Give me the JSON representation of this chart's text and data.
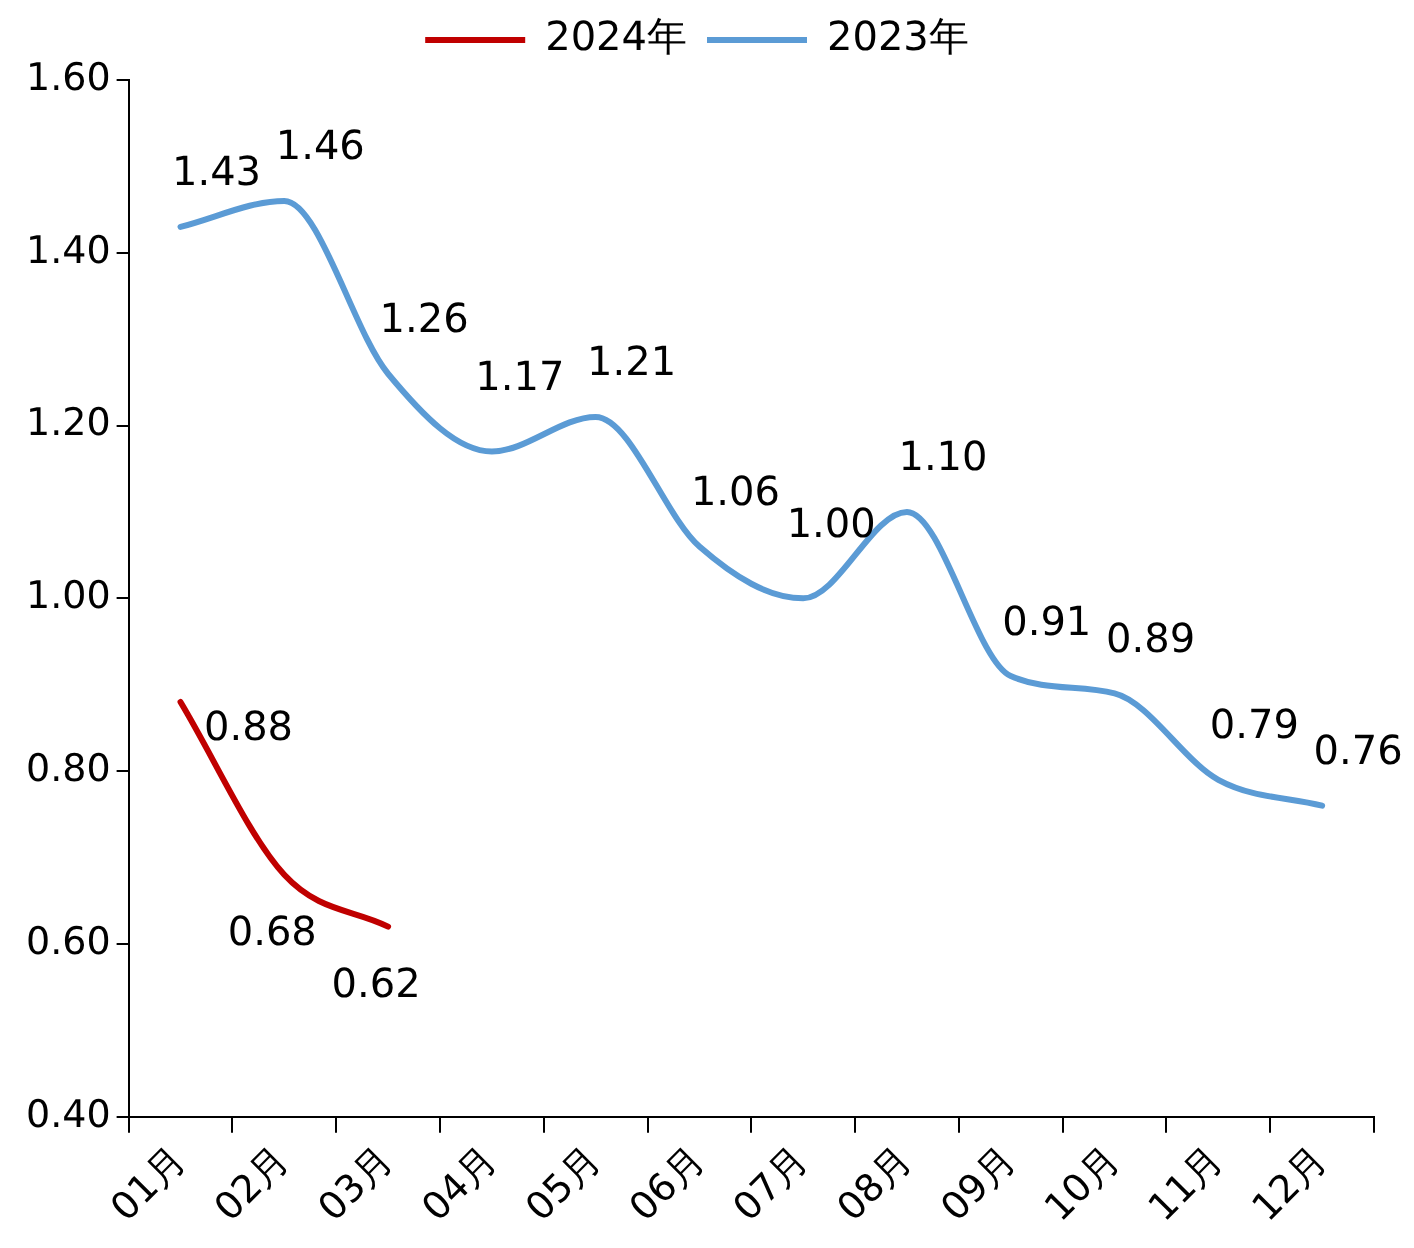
{
  "chart_data": {
    "type": "line",
    "categories": [
      "01月",
      "02月",
      "03月",
      "04月",
      "05月",
      "06月",
      "07月",
      "08月",
      "09月",
      "10月",
      "11月",
      "12月"
    ],
    "series": [
      {
        "name": "2024年",
        "color": "#c00000",
        "values": [
          0.88,
          0.68,
          0.62,
          null,
          null,
          null,
          null,
          null,
          null,
          null,
          null,
          null
        ],
        "value_labels": [
          "0.88",
          "0.68",
          "0.62",
          null,
          null,
          null,
          null,
          null,
          null,
          null,
          null,
          null
        ]
      },
      {
        "name": "2023年",
        "color": "#5b9bd5",
        "values": [
          1.43,
          1.46,
          1.26,
          1.17,
          1.21,
          1.06,
          1.0,
          1.1,
          0.91,
          0.89,
          0.79,
          0.76
        ],
        "value_labels": [
          "1.43",
          "1.46",
          "1.26",
          "1.17",
          "1.21",
          "1.06",
          "1.00",
          "1.10",
          "0.91",
          "0.89",
          "0.79",
          "0.76"
        ]
      }
    ],
    "ylim": [
      0.4,
      1.6
    ],
    "yticks": [
      {
        "value": 0.4,
        "label": "0.40"
      },
      {
        "value": 0.6,
        "label": "0.60"
      },
      {
        "value": 0.8,
        "label": "0.80"
      },
      {
        "value": 1.0,
        "label": "1.00"
      },
      {
        "value": 1.2,
        "label": "1.20"
      },
      {
        "value": 1.4,
        "label": "1.40"
      },
      {
        "value": 1.6,
        "label": "1.60"
      }
    ],
    "grid": false,
    "legend": "top",
    "marker": "none",
    "line_style": "solid"
  }
}
